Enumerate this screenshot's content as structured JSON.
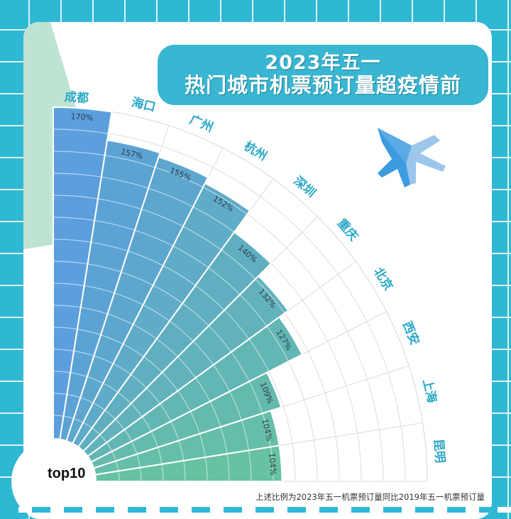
{
  "title": {
    "line1": "2023年五一",
    "line2": "热门城市机票预订量超疫情前"
  },
  "badge": "top10",
  "footnote": "上述比例为2023年五一机票预订量同比2019年五一机票预订量",
  "icons": {
    "plane": "airplane-icon"
  },
  "colors": {
    "background": "#2fb8d4",
    "title_pill": "#38b6d2",
    "label_text": "#2aa8c8",
    "bar_start": "#5b9fdc",
    "bar_end": "#66c2a0",
    "grid": "#dddddd",
    "corner_deco": "#bfe3d3"
  },
  "chart_data": {
    "type": "radial-bar",
    "title": "2023年五一 热门城市机票预订量超疫情前",
    "subtitle": "top10",
    "note": "上述比例为2023年五一机票预订量同比2019年五一机票预订量",
    "categories": [
      "成都",
      "海口",
      "广州",
      "杭州",
      "深圳",
      "重庆",
      "北京",
      "西安",
      "上海",
      "昆明"
    ],
    "values": [
      170,
      157,
      155,
      152,
      140,
      132,
      127,
      109,
      104,
      104
    ],
    "value_labels": [
      "170%",
      "157%",
      "155%",
      "152%",
      "140%",
      "132%",
      "127%",
      "109%",
      "104%",
      "104%"
    ],
    "unit": "%",
    "value_range": [
      0,
      170
    ],
    "grid": true,
    "grid_step": 10,
    "layout": {
      "center": [
        75,
        678
      ],
      "inner_radius": 60,
      "outer_radius": 527,
      "start_angle_deg": 90,
      "end_angle_deg": 0
    }
  }
}
